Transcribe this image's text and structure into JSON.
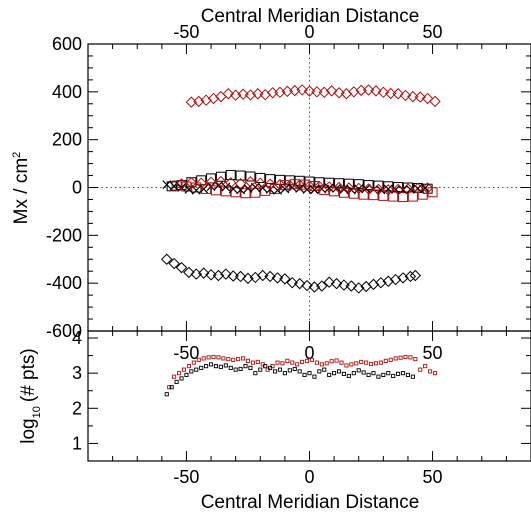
{
  "chart_data": [
    {
      "panel": "upper",
      "type": "scatter",
      "title": "",
      "xlabel_top": "Central Meridian Distance",
      "ylabel": "Mx / cm",
      "ylabel_superscript": "2",
      "xlim": [
        -90,
        90
      ],
      "ylim": [
        -600,
        600
      ],
      "x_ticks": [
        -50,
        0,
        50
      ],
      "y_ticks": [
        600,
        400,
        200,
        0,
        -200,
        -400,
        -600
      ],
      "zero_lines": {
        "color": "#d02020",
        "style": "dotted"
      },
      "series": [
        {
          "marker": "diamond",
          "color": "#b01010",
          "x": [
            -48,
            -45,
            -42,
            -39,
            -36,
            -33,
            -30,
            -27,
            -24,
            -21,
            -18,
            -15,
            -12,
            -9,
            -6,
            -3,
            0,
            3,
            6,
            9,
            12,
            15,
            18,
            21,
            24,
            27,
            30,
            33,
            36,
            39,
            42,
            45,
            48,
            51
          ],
          "y": [
            357,
            360,
            365,
            372,
            380,
            392,
            386,
            390,
            387,
            392,
            388,
            396,
            398,
            402,
            405,
            408,
            403,
            400,
            398,
            404,
            396,
            392,
            400,
            406,
            408,
            404,
            398,
            393,
            392,
            385,
            380,
            378,
            372,
            360
          ]
        },
        {
          "marker": "diamond",
          "color": "#000000",
          "x": [
            -58,
            -55,
            -52,
            -49,
            -46,
            -43,
            -40,
            -37,
            -34,
            -31,
            -28,
            -25,
            -22,
            -19,
            -16,
            -13,
            -10,
            -7,
            -4,
            -1,
            2,
            5,
            8,
            11,
            14,
            17,
            20,
            23,
            26,
            29,
            32,
            35,
            38,
            41,
            43
          ],
          "y": [
            -300,
            -318,
            -335,
            -355,
            -362,
            -358,
            -365,
            -368,
            -362,
            -370,
            -372,
            -380,
            -376,
            -368,
            -372,
            -378,
            -382,
            -398,
            -402,
            -410,
            -416,
            -412,
            -396,
            -402,
            -408,
            -412,
            -420,
            -414,
            -405,
            -398,
            -392,
            -385,
            -378,
            -372,
            -368
          ]
        },
        {
          "marker": "square",
          "color": "#000000",
          "x": [
            -56,
            -52,
            -48,
            -44,
            -40,
            -36,
            -32,
            -28,
            -24,
            -20,
            -16,
            -12,
            -8,
            -4,
            0,
            4,
            8,
            12,
            16,
            20,
            24,
            28,
            32,
            36,
            40,
            44,
            48
          ],
          "y": [
            5,
            10,
            22,
            30,
            38,
            45,
            52,
            50,
            46,
            40,
            35,
            32,
            30,
            28,
            25,
            22,
            20,
            18,
            16,
            14,
            10,
            8,
            5,
            2,
            0,
            -2,
            -5
          ]
        },
        {
          "marker": "square",
          "color": "#b01010",
          "x": [
            -54,
            -50,
            -46,
            -42,
            -38,
            -34,
            -30,
            -26,
            -22,
            -18,
            -14,
            -10,
            -6,
            -2,
            2,
            6,
            10,
            14,
            18,
            22,
            26,
            30,
            34,
            38,
            42,
            46,
            50
          ],
          "y": [
            8,
            4,
            0,
            -6,
            -12,
            -16,
            -20,
            -24,
            -22,
            -14,
            -6,
            10,
            14,
            12,
            6,
            -10,
            -16,
            -22,
            -26,
            -30,
            -32,
            -35,
            -38,
            -40,
            -38,
            -30,
            -20
          ]
        },
        {
          "marker": "x",
          "color": "#000000",
          "x": [
            -58,
            -55,
            -52,
            -49,
            -46,
            -43,
            -40,
            -37,
            -34,
            -31,
            -28,
            -25,
            -22,
            -19,
            -16,
            -13,
            -10,
            -7,
            -4,
            -1,
            2,
            5,
            8,
            11,
            14,
            17,
            20,
            23,
            26,
            29,
            32,
            35,
            38,
            41,
            44,
            47
          ],
          "y": [
            12,
            6,
            0,
            -8,
            -12,
            -6,
            4,
            8,
            2,
            -6,
            -10,
            -4,
            2,
            -2,
            -8,
            -12,
            -6,
            0,
            -4,
            -8,
            -10,
            -6,
            -2,
            -4,
            -8,
            -10,
            -6,
            -4,
            -8,
            -10,
            -6,
            -8,
            -10,
            -8,
            -4,
            -2
          ]
        },
        {
          "marker": "diamond",
          "color": "#b01010",
          "x": [
            -52,
            -48,
            -44,
            -40,
            -36,
            -32,
            -28,
            -24,
            -20,
            -16,
            -12,
            -8,
            -4,
            0,
            4,
            8,
            12,
            16,
            20,
            24,
            28,
            32,
            36,
            40,
            44,
            48
          ],
          "y": [
            15,
            20,
            18,
            22,
            25,
            20,
            16,
            24,
            18,
            14,
            12,
            8,
            10,
            6,
            4,
            2,
            0,
            -2,
            -4,
            -6,
            -8,
            -10,
            -8,
            -6,
            -4,
            -2
          ]
        }
      ]
    },
    {
      "panel": "lower",
      "type": "scatter",
      "title": "",
      "xlabel": "Central Meridian Distance",
      "ylabel": "log",
      "ylabel_subscript": "10",
      "ylabel_suffix": "(# pts)",
      "xlim": [
        -90,
        90
      ],
      "ylim": [
        0.5,
        4.2
      ],
      "x_ticks": [
        -50,
        0,
        50
      ],
      "y_ticks": [
        4,
        3,
        2,
        1
      ],
      "series": [
        {
          "marker": "small-square",
          "color": "#b01010",
          "x": [
            -57,
            -55,
            -53,
            -51,
            -49,
            -47,
            -45,
            -43,
            -41,
            -39,
            -37,
            -35,
            -33,
            -31,
            -29,
            -27,
            -25,
            -23,
            -21,
            -19,
            -17,
            -15,
            -13,
            -11,
            -9,
            -7,
            -5,
            -3,
            -1,
            1,
            3,
            5,
            7,
            9,
            11,
            13,
            15,
            17,
            19,
            21,
            23,
            25,
            27,
            29,
            31,
            33,
            35,
            37,
            39,
            41,
            43,
            45,
            47,
            49,
            51
          ],
          "y": [
            2.6,
            2.9,
            3.0,
            3.1,
            3.2,
            3.3,
            3.38,
            3.42,
            3.45,
            3.46,
            3.45,
            3.42,
            3.4,
            3.38,
            3.4,
            3.42,
            3.35,
            3.3,
            3.32,
            3.25,
            3.1,
            3.2,
            3.3,
            3.28,
            3.35,
            3.3,
            3.25,
            3.32,
            3.35,
            3.38,
            3.3,
            3.25,
            3.28,
            3.34,
            3.36,
            3.3,
            3.22,
            3.25,
            3.28,
            3.32,
            3.3,
            3.26,
            3.28,
            3.3,
            3.35,
            3.38,
            3.42,
            3.44,
            3.46,
            3.45,
            3.4,
            3.1,
            3.2,
            3.05,
            3.0
          ]
        },
        {
          "marker": "small-square",
          "color": "#000000",
          "x": [
            -58,
            -56,
            -54,
            -52,
            -50,
            -48,
            -46,
            -44,
            -42,
            -40,
            -38,
            -36,
            -34,
            -32,
            -30,
            -28,
            -26,
            -24,
            -22,
            -20,
            -18,
            -16,
            -14,
            -12,
            -10,
            -8,
            -6,
            -4,
            -2,
            0,
            2,
            4,
            6,
            8,
            10,
            12,
            14,
            16,
            18,
            20,
            22,
            24,
            26,
            28,
            30,
            32,
            34,
            36,
            38,
            40,
            42
          ],
          "y": [
            2.4,
            2.6,
            2.75,
            2.85,
            2.95,
            3.05,
            3.1,
            3.15,
            3.2,
            3.25,
            3.2,
            3.18,
            3.22,
            3.15,
            3.1,
            3.12,
            3.2,
            3.15,
            3.0,
            3.1,
            3.2,
            3.15,
            3.05,
            3.1,
            3.0,
            3.08,
            3.12,
            3.05,
            2.95,
            3.0,
            2.9,
            3.05,
            3.1,
            2.95,
            3.0,
            3.05,
            2.98,
            2.92,
            3.0,
            3.08,
            3.02,
            2.95,
            3.0,
            2.9,
            2.95,
            3.0,
            2.92,
            2.98,
            3.0,
            2.95,
            2.9
          ]
        }
      ]
    }
  ]
}
